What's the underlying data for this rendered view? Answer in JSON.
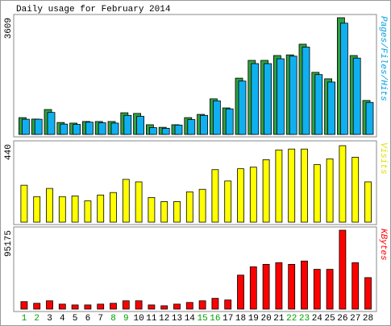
{
  "chart_data": [
    {
      "type": "bar",
      "title": "Daily usage for February 2014",
      "y_label": "Pages/Files/Hits",
      "y_label_color": "#00a0e0",
      "ylim": [
        0,
        3609
      ],
      "yticks": [
        3609
      ],
      "series": [
        {
          "color": "#30a040",
          "values": [
            520,
            475,
            770,
            370,
            350,
            400,
            400,
            400,
            670,
            650,
            300,
            220,
            300,
            520,
            620,
            1100,
            820,
            1740,
            2290,
            2290,
            2440,
            2460,
            2790,
            1920,
            1720,
            3609,
            2440,
            1050
          ]
        },
        {
          "color": "#10b0f0",
          "values": [
            470,
            470,
            680,
            320,
            310,
            380,
            360,
            350,
            590,
            560,
            210,
            190,
            290,
            460,
            590,
            1040,
            790,
            1650,
            2190,
            2190,
            2340,
            2420,
            2700,
            1850,
            1620,
            3440,
            2360,
            990
          ]
        }
      ]
    },
    {
      "type": "bar",
      "y_label": "Visits",
      "y_label_color": "#e0e000",
      "ylim": [
        0,
        440
      ],
      "yticks": [
        440
      ],
      "series": [
        {
          "color": "#ffff00",
          "values": [
            208,
            144,
            190,
            144,
            148,
            120,
            153,
            167,
            241,
            227,
            139,
            116,
            116,
            171,
            185,
            296,
            232,
            301,
            310,
            352,
            407,
            412,
            412,
            324,
            357,
            431,
            366,
            227
          ]
        }
      ]
    },
    {
      "type": "bar",
      "y_label": "KBytes",
      "y_label_color": "#ff0000",
      "ylim": [
        0,
        95175
      ],
      "yticks": [
        95175
      ],
      "categories": [
        "1",
        "2",
        "3",
        "4",
        "5",
        "6",
        "7",
        "8",
        "9",
        "10",
        "11",
        "12",
        "13",
        "14",
        "15",
        "16",
        "17",
        "18",
        "19",
        "20",
        "21",
        "22",
        "23",
        "24",
        "25",
        "26",
        "27",
        "28"
      ],
      "category_colors": [
        "#00a000",
        "#00a000",
        "#000000",
        "#000000",
        "#000000",
        "#000000",
        "#000000",
        "#00a000",
        "#00a000",
        "#000000",
        "#000000",
        "#000000",
        "#000000",
        "#000000",
        "#00a000",
        "#00a000",
        "#000000",
        "#000000",
        "#000000",
        "#000000",
        "#000000",
        "#00a000",
        "#00a000",
        "#000000",
        "#000000",
        "#000000",
        "#000000",
        "#000000"
      ],
      "series": [
        {
          "color": "#ff0000",
          "values": [
            9000,
            7000,
            10000,
            6000,
            5000,
            5000,
            6000,
            7000,
            10000,
            10000,
            5000,
            4000,
            6000,
            8000,
            10000,
            13000,
            11000,
            41000,
            51000,
            54000,
            56000,
            54000,
            58000,
            48000,
            48000,
            95175,
            56000,
            38000
          ]
        }
      ]
    }
  ]
}
